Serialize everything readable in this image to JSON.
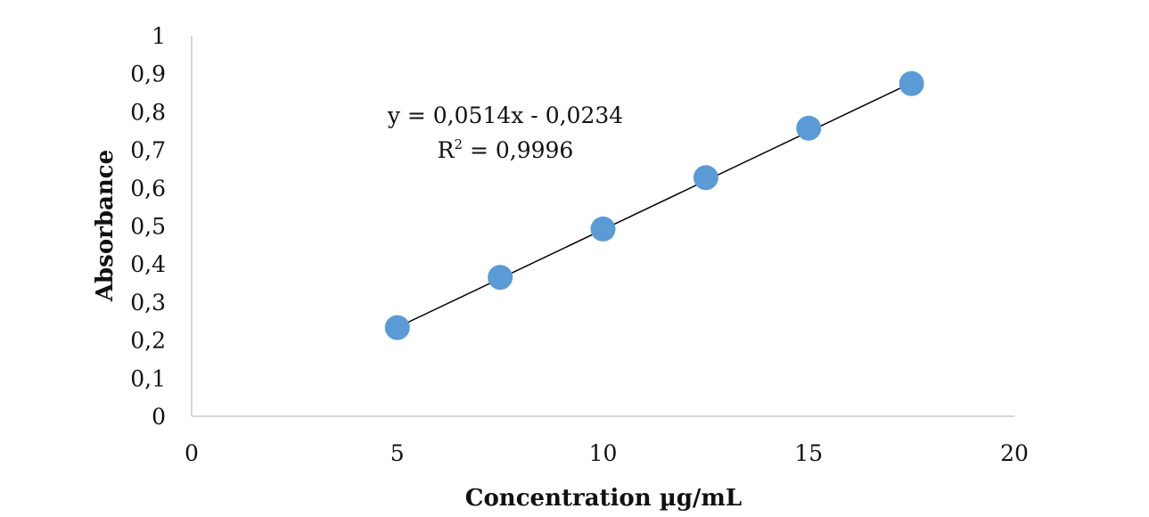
{
  "chart_data": {
    "type": "scatter",
    "title": "",
    "xlabel": "Concentration µg/mL",
    "ylabel": "Absorbance",
    "xlim": [
      0,
      20
    ],
    "ylim": [
      0,
      1
    ],
    "x_ticks": [
      "0",
      "5",
      "10",
      "15",
      "20"
    ],
    "y_ticks": [
      "0",
      "0,1",
      "0,2",
      "0,3",
      "0,4",
      "0,5",
      "0,6",
      "0,7",
      "0,8",
      "0,9",
      "1"
    ],
    "grid": false,
    "legend": "none",
    "series": [
      {
        "points": [
          {
            "x": 5,
            "y": 0.233
          },
          {
            "x": 7.5,
            "y": 0.365
          },
          {
            "x": 10,
            "y": 0.492
          },
          {
            "x": 12.5,
            "y": 0.627
          },
          {
            "x": 15,
            "y": 0.757
          },
          {
            "x": 17.5,
            "y": 0.874
          }
        ],
        "color": "#5b9bd5"
      }
    ],
    "trendline": {
      "slope": 0.0514,
      "intercept": -0.0234,
      "x_range": [
        5,
        17.5
      ],
      "color": "#000000"
    },
    "annotations": {
      "equation": "y = 0,0514x - 0,0234",
      "r2_prefix": "R",
      "r2_sup": "2",
      "r2_value": " = 0,9996"
    }
  }
}
